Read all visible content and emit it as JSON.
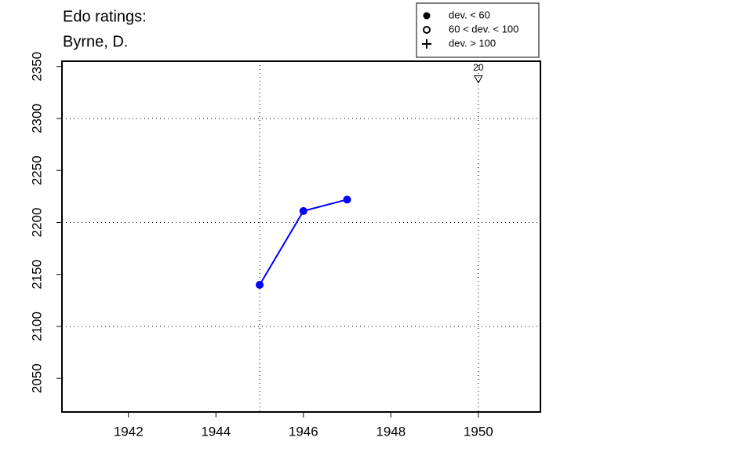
{
  "chart_data": {
    "type": "line",
    "title": [
      "Edo ratings:",
      "Byrne, D."
    ],
    "x": [
      1945,
      1946,
      1947
    ],
    "values": [
      2140,
      2211,
      2222
    ],
    "color": "#0000ff",
    "xlim": [
      1940.48,
      1951.42
    ],
    "xticks": [
      1942,
      1944,
      1946,
      1948,
      1950
    ],
    "ylim": [
      2017.7,
      2355.1
    ],
    "yticks": [
      2050,
      2100,
      2150,
      2200,
      2250,
      2300,
      2350
    ],
    "xgrid": [
      1945,
      1950
    ],
    "ygrid": [
      2100,
      2200,
      2300
    ],
    "annotation": {
      "x": 1950,
      "y": 2338,
      "label": "20"
    },
    "legend": [
      "dev. < 60",
      "60 < dev. < 100",
      "dev. > 100"
    ]
  }
}
